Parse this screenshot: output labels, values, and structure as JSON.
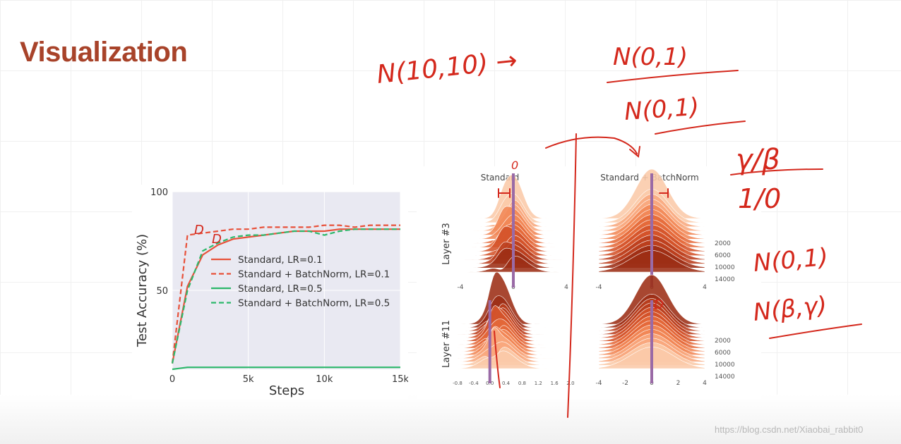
{
  "slide": {
    "title": "Visualization",
    "watermark": "https://blog.csdn.net/Xiaobai_rabbit0"
  },
  "colors": {
    "title": "#a8432a",
    "standard": "#e8513a",
    "batchnorm_green": "#2db86b",
    "plot_bg": "#e9e9f2",
    "ink": "#d4281c",
    "mean_bar": "#9a6aa6"
  },
  "chart_data": [
    {
      "type": "line",
      "title": "",
      "xlabel": "Steps",
      "ylabel": "Test Accuracy (%)",
      "xlim": [
        0,
        15000
      ],
      "ylim": [
        10,
        100
      ],
      "xticks": [
        "0",
        "5k",
        "10k",
        "15k"
      ],
      "yticks": [
        "50",
        "100"
      ],
      "legend": "center-right",
      "grid": true,
      "series": [
        {
          "name": "Standard, LR=0.1",
          "color": "#e8513a",
          "dash": false,
          "x": [
            0,
            1000,
            2000,
            3000,
            4000,
            5000,
            6000,
            7000,
            8000,
            9000,
            10000,
            11000,
            12000,
            13000,
            14000,
            15000
          ],
          "y": [
            13,
            52,
            68,
            73,
            76,
            77,
            78,
            79,
            80,
            80,
            80,
            81,
            81,
            81,
            81,
            81
          ]
        },
        {
          "name": "Standard + BatchNorm, LR=0.1",
          "color": "#e8513a",
          "dash": true,
          "x": [
            0,
            1000,
            2000,
            3000,
            4000,
            5000,
            6000,
            7000,
            8000,
            9000,
            10000,
            11000,
            12000,
            13000,
            14000,
            15000
          ],
          "y": [
            13,
            78,
            79,
            80,
            81,
            81,
            82,
            82,
            82,
            82,
            83,
            83,
            82,
            83,
            83,
            83
          ]
        },
        {
          "name": "Standard, LR=0.5",
          "color": "#2db86b",
          "dash": false,
          "x": [
            0,
            1000,
            2000,
            3000,
            4000,
            5000,
            6000,
            7000,
            8000,
            9000,
            10000,
            11000,
            12000,
            13000,
            14000,
            15000
          ],
          "y": [
            10,
            11,
            11,
            11,
            11,
            11,
            11,
            11,
            11,
            11,
            11,
            11,
            11,
            11,
            11,
            11
          ]
        },
        {
          "name": "Standard + BatchNorm, LR=0.5",
          "color": "#2db86b",
          "dash": true,
          "x": [
            0,
            1000,
            2000,
            3000,
            4000,
            5000,
            6000,
            7000,
            8000,
            9000,
            10000,
            11000,
            12000,
            13000,
            14000,
            15000
          ],
          "y": [
            13,
            50,
            70,
            74,
            77,
            78,
            78,
            79,
            80,
            80,
            78,
            80,
            81,
            81,
            81,
            81
          ]
        }
      ]
    },
    {
      "type": "area",
      "column_titles": [
        "Standard",
        "Standard + BatchNorm"
      ],
      "row_labels": [
        "Layer #3",
        "Layer #11"
      ],
      "step_labels": [
        "2000",
        "6000",
        "10000",
        "14000"
      ],
      "panels": [
        {
          "row": 0,
          "col": 0,
          "xlim": [
            -4,
            4
          ],
          "xticks": [
            "-4",
            "0",
            "4"
          ]
        },
        {
          "row": 0,
          "col": 1,
          "xlim": [
            -4,
            4
          ],
          "xticks": [
            "-4",
            "0",
            "4"
          ]
        },
        {
          "row": 1,
          "col": 0,
          "xlim": [
            -0.8,
            2.0
          ],
          "xticks": [
            "-0.8",
            "-0.4",
            "0.0",
            "0.4",
            "0.8",
            "1.2",
            "1.6",
            "2.0"
          ]
        },
        {
          "row": 1,
          "col": 1,
          "xlim": [
            -4,
            4
          ],
          "xticks": [
            "-4",
            "-2",
            "0",
            "2",
            "4"
          ]
        }
      ]
    }
  ],
  "annotations": {
    "top_left": "N(10,10) →",
    "top_frac_num": "N(0,1)",
    "top_frac_den": "N(0,1)",
    "right_num": "γ/β",
    "right_den": "1/0",
    "right_mid": "N(0,1)",
    "right_bottom": "N(β,γ)",
    "panel_zero": "0",
    "marker": "D"
  }
}
